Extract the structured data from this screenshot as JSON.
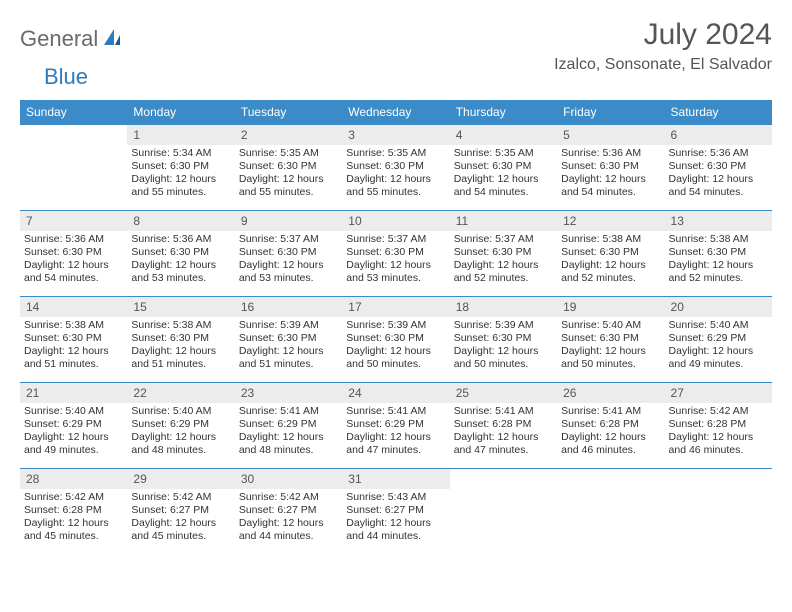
{
  "logo": {
    "general": "General",
    "blue": "Blue"
  },
  "header": {
    "title": "July 2024",
    "location": "Izalco, Sonsonate, El Salvador"
  },
  "colors": {
    "header_bg": "#3b8bc9",
    "header_text": "#ffffff",
    "daynum_bg": "#ececec",
    "text": "#333333",
    "logo_gray": "#6a6a6a",
    "logo_blue": "#2f7bbf",
    "border": "#3b8bc9"
  },
  "weekdays": [
    "Sunday",
    "Monday",
    "Tuesday",
    "Wednesday",
    "Thursday",
    "Friday",
    "Saturday"
  ],
  "weeks": [
    [
      {
        "day": ""
      },
      {
        "day": "1",
        "sunrise": "Sunrise: 5:34 AM",
        "sunset": "Sunset: 6:30 PM",
        "daylight": "Daylight: 12 hours and 55 minutes."
      },
      {
        "day": "2",
        "sunrise": "Sunrise: 5:35 AM",
        "sunset": "Sunset: 6:30 PM",
        "daylight": "Daylight: 12 hours and 55 minutes."
      },
      {
        "day": "3",
        "sunrise": "Sunrise: 5:35 AM",
        "sunset": "Sunset: 6:30 PM",
        "daylight": "Daylight: 12 hours and 55 minutes."
      },
      {
        "day": "4",
        "sunrise": "Sunrise: 5:35 AM",
        "sunset": "Sunset: 6:30 PM",
        "daylight": "Daylight: 12 hours and 54 minutes."
      },
      {
        "day": "5",
        "sunrise": "Sunrise: 5:36 AM",
        "sunset": "Sunset: 6:30 PM",
        "daylight": "Daylight: 12 hours and 54 minutes."
      },
      {
        "day": "6",
        "sunrise": "Sunrise: 5:36 AM",
        "sunset": "Sunset: 6:30 PM",
        "daylight": "Daylight: 12 hours and 54 minutes."
      }
    ],
    [
      {
        "day": "7",
        "sunrise": "Sunrise: 5:36 AM",
        "sunset": "Sunset: 6:30 PM",
        "daylight": "Daylight: 12 hours and 54 minutes."
      },
      {
        "day": "8",
        "sunrise": "Sunrise: 5:36 AM",
        "sunset": "Sunset: 6:30 PM",
        "daylight": "Daylight: 12 hours and 53 minutes."
      },
      {
        "day": "9",
        "sunrise": "Sunrise: 5:37 AM",
        "sunset": "Sunset: 6:30 PM",
        "daylight": "Daylight: 12 hours and 53 minutes."
      },
      {
        "day": "10",
        "sunrise": "Sunrise: 5:37 AM",
        "sunset": "Sunset: 6:30 PM",
        "daylight": "Daylight: 12 hours and 53 minutes."
      },
      {
        "day": "11",
        "sunrise": "Sunrise: 5:37 AM",
        "sunset": "Sunset: 6:30 PM",
        "daylight": "Daylight: 12 hours and 52 minutes."
      },
      {
        "day": "12",
        "sunrise": "Sunrise: 5:38 AM",
        "sunset": "Sunset: 6:30 PM",
        "daylight": "Daylight: 12 hours and 52 minutes."
      },
      {
        "day": "13",
        "sunrise": "Sunrise: 5:38 AM",
        "sunset": "Sunset: 6:30 PM",
        "daylight": "Daylight: 12 hours and 52 minutes."
      }
    ],
    [
      {
        "day": "14",
        "sunrise": "Sunrise: 5:38 AM",
        "sunset": "Sunset: 6:30 PM",
        "daylight": "Daylight: 12 hours and 51 minutes."
      },
      {
        "day": "15",
        "sunrise": "Sunrise: 5:38 AM",
        "sunset": "Sunset: 6:30 PM",
        "daylight": "Daylight: 12 hours and 51 minutes."
      },
      {
        "day": "16",
        "sunrise": "Sunrise: 5:39 AM",
        "sunset": "Sunset: 6:30 PM",
        "daylight": "Daylight: 12 hours and 51 minutes."
      },
      {
        "day": "17",
        "sunrise": "Sunrise: 5:39 AM",
        "sunset": "Sunset: 6:30 PM",
        "daylight": "Daylight: 12 hours and 50 minutes."
      },
      {
        "day": "18",
        "sunrise": "Sunrise: 5:39 AM",
        "sunset": "Sunset: 6:30 PM",
        "daylight": "Daylight: 12 hours and 50 minutes."
      },
      {
        "day": "19",
        "sunrise": "Sunrise: 5:40 AM",
        "sunset": "Sunset: 6:30 PM",
        "daylight": "Daylight: 12 hours and 50 minutes."
      },
      {
        "day": "20",
        "sunrise": "Sunrise: 5:40 AM",
        "sunset": "Sunset: 6:29 PM",
        "daylight": "Daylight: 12 hours and 49 minutes."
      }
    ],
    [
      {
        "day": "21",
        "sunrise": "Sunrise: 5:40 AM",
        "sunset": "Sunset: 6:29 PM",
        "daylight": "Daylight: 12 hours and 49 minutes."
      },
      {
        "day": "22",
        "sunrise": "Sunrise: 5:40 AM",
        "sunset": "Sunset: 6:29 PM",
        "daylight": "Daylight: 12 hours and 48 minutes."
      },
      {
        "day": "23",
        "sunrise": "Sunrise: 5:41 AM",
        "sunset": "Sunset: 6:29 PM",
        "daylight": "Daylight: 12 hours and 48 minutes."
      },
      {
        "day": "24",
        "sunrise": "Sunrise: 5:41 AM",
        "sunset": "Sunset: 6:29 PM",
        "daylight": "Daylight: 12 hours and 47 minutes."
      },
      {
        "day": "25",
        "sunrise": "Sunrise: 5:41 AM",
        "sunset": "Sunset: 6:28 PM",
        "daylight": "Daylight: 12 hours and 47 minutes."
      },
      {
        "day": "26",
        "sunrise": "Sunrise: 5:41 AM",
        "sunset": "Sunset: 6:28 PM",
        "daylight": "Daylight: 12 hours and 46 minutes."
      },
      {
        "day": "27",
        "sunrise": "Sunrise: 5:42 AM",
        "sunset": "Sunset: 6:28 PM",
        "daylight": "Daylight: 12 hours and 46 minutes."
      }
    ],
    [
      {
        "day": "28",
        "sunrise": "Sunrise: 5:42 AM",
        "sunset": "Sunset: 6:28 PM",
        "daylight": "Daylight: 12 hours and 45 minutes."
      },
      {
        "day": "29",
        "sunrise": "Sunrise: 5:42 AM",
        "sunset": "Sunset: 6:27 PM",
        "daylight": "Daylight: 12 hours and 45 minutes."
      },
      {
        "day": "30",
        "sunrise": "Sunrise: 5:42 AM",
        "sunset": "Sunset: 6:27 PM",
        "daylight": "Daylight: 12 hours and 44 minutes."
      },
      {
        "day": "31",
        "sunrise": "Sunrise: 5:43 AM",
        "sunset": "Sunset: 6:27 PM",
        "daylight": "Daylight: 12 hours and 44 minutes."
      },
      {
        "day": ""
      },
      {
        "day": ""
      },
      {
        "day": ""
      }
    ]
  ]
}
